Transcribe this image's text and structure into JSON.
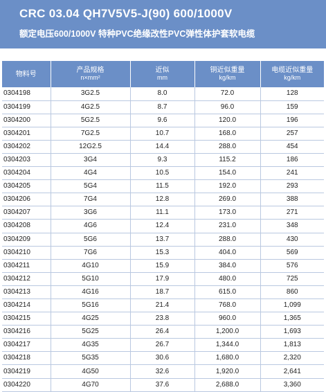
{
  "header": {
    "title": "CRC 03.04 QH7V5V5-J(90)  600/1000V",
    "subtitle": "额定电压600/1000V 特种PVC绝缘改性PVC弹性体护套软电缆"
  },
  "table": {
    "columns": [
      {
        "label": "物料号",
        "sub": ""
      },
      {
        "label": "产品规格",
        "sub": "n×mm²"
      },
      {
        "label": "近似",
        "sub": "mm"
      },
      {
        "label": "铜近似重量",
        "sub": "kg/km"
      },
      {
        "label": "电缆近似重量",
        "sub": "kg/km"
      }
    ],
    "rows": [
      [
        "0304198",
        "3G2.5",
        "8.0",
        "72.0",
        "128"
      ],
      [
        "0304199",
        "4G2.5",
        "8.7",
        "96.0",
        "159"
      ],
      [
        "0304200",
        "5G2.5",
        "9.6",
        "120.0",
        "196"
      ],
      [
        "0304201",
        "7G2.5",
        "10.7",
        "168.0",
        "257"
      ],
      [
        "0304202",
        "12G2.5",
        "14.4",
        "288.0",
        "454"
      ],
      [
        "0304203",
        "3G4",
        "9.3",
        "115.2",
        "186"
      ],
      [
        "0304204",
        "4G4",
        "10.5",
        "154.0",
        "241"
      ],
      [
        "0304205",
        "5G4",
        "11.5",
        "192.0",
        "293"
      ],
      [
        "0304206",
        "7G4",
        "12.8",
        "269.0",
        "388"
      ],
      [
        "0304207",
        "3G6",
        "11.1",
        "173.0",
        "271"
      ],
      [
        "0304208",
        "4G6",
        "12.4",
        "231.0",
        "348"
      ],
      [
        "0304209",
        "5G6",
        "13.7",
        "288.0",
        "430"
      ],
      [
        "0304210",
        "7G6",
        "15.3",
        "404.0",
        "569"
      ],
      [
        "0304211",
        "4G10",
        "15.9",
        "384.0",
        "576"
      ],
      [
        "0304212",
        "5G10",
        "17.9",
        "480.0",
        "725"
      ],
      [
        "0304213",
        "4G16",
        "18.7",
        "615.0",
        "860"
      ],
      [
        "0304214",
        "5G16",
        "21.4",
        "768.0",
        "1,099"
      ],
      [
        "0304215",
        "4G25",
        "23.8",
        "960.0",
        "1,365"
      ],
      [
        "0304216",
        "5G25",
        "26.4",
        "1,200.0",
        "1,693"
      ],
      [
        "0304217",
        "4G35",
        "26.7",
        "1,344.0",
        "1,813"
      ],
      [
        "0304218",
        "5G35",
        "30.6",
        "1,680.0",
        "2,320"
      ],
      [
        "0304219",
        "4G50",
        "32.6",
        "1,920.0",
        "2,641"
      ],
      [
        "0304220",
        "4G70",
        "37.6",
        "2,688.0",
        "3,360"
      ]
    ]
  }
}
